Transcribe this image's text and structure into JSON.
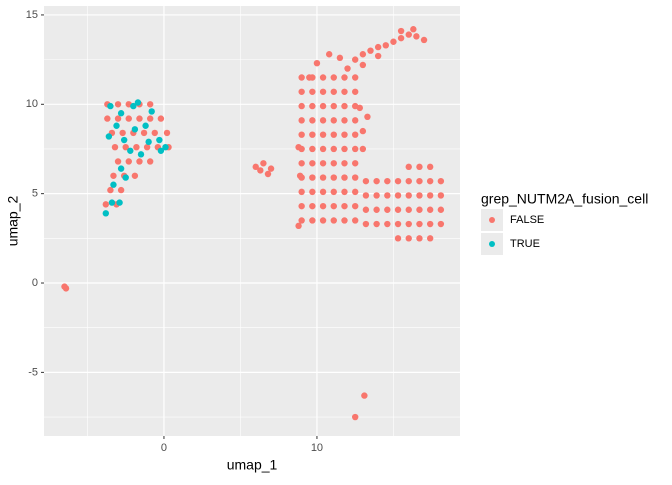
{
  "chart_data": {
    "type": "scatter",
    "x_label": "umap_1",
    "y_label": "umap_2",
    "legend_title": "grep_NUTM2A_fusion_cell",
    "legend_position": "right",
    "grid": true,
    "xlim": [
      -7.84,
      19.35
    ],
    "ylim": [
      -8.56,
      15.5
    ],
    "xticks": [
      0,
      10
    ],
    "yticks": [
      -5,
      0,
      5,
      10,
      15
    ],
    "x_minor_ticks": [
      -5,
      5,
      15
    ],
    "y_minor_ticks": [
      -7.5,
      -2.5,
      2.5,
      7.5,
      12.5
    ],
    "series": [
      {
        "name": "FALSE",
        "color": "#F8766D",
        "x": [
          9,
          9.7,
          10.4,
          11.1,
          11.8,
          12.5,
          9,
          9.7,
          10.4,
          11.1,
          11.8,
          12.5,
          9,
          9.7,
          10.4,
          11.1,
          11.8,
          12.5,
          9,
          9.7,
          10.4,
          11.1,
          11.8,
          12.5,
          9,
          9.7,
          10.4,
          11.1,
          11.8,
          12.5,
          9,
          9.7,
          10.4,
          11.1,
          11.8,
          12.5,
          9,
          9.7,
          10.4,
          11.1,
          11.8,
          12.5,
          9,
          9.7,
          10.4,
          11.1,
          11.8,
          12.5,
          9,
          9.7,
          10.4,
          11.1,
          11.8,
          12.5,
          9,
          9.7,
          10.4,
          11.1,
          11.8,
          12.5,
          9,
          9.7,
          10.4,
          11.1,
          11.8,
          12.5,
          15.3,
          16,
          16.7,
          17.4,
          13.2,
          13.9,
          14.6,
          15.3,
          16,
          16.7,
          17.4,
          18.1,
          13.2,
          13.9,
          14.6,
          15.3,
          16,
          16.7,
          17.4,
          18.1,
          13.2,
          13.9,
          14.6,
          15.3,
          16,
          16.7,
          17.4,
          18.1,
          13.2,
          13.9,
          14.6,
          15.3,
          16,
          16.7,
          17.4,
          18.1,
          16,
          16.7,
          17.4,
          12.5,
          13,
          13.5,
          14,
          14.5,
          15,
          15.5,
          16,
          16.5,
          17,
          15.5,
          16.3,
          12,
          11.5,
          10.8,
          10,
          9.5,
          13,
          14,
          13,
          13,
          13.3,
          12.8,
          8.8,
          8.8,
          8.9,
          6,
          6.5,
          7,
          6.8,
          6.3,
          -6.5,
          -6.4,
          13.1,
          12.5,
          -3.7,
          -3,
          -2.3,
          -1.6,
          -0.9,
          -3.7,
          -3,
          -2.3,
          -1.6,
          -0.9,
          -0.2,
          -3.4,
          -2.7,
          -2,
          -1.3,
          -0.6,
          0.2,
          -3.2,
          -2.5,
          -1.8,
          -1.1,
          -0.4,
          0.3,
          -3,
          -2.3,
          -1.6,
          -0.9,
          -3.3,
          -2.6,
          -1.9,
          -3.5,
          -2.8,
          -3.8,
          -3.1
        ],
        "values": [
          3.5,
          3.5,
          3.5,
          3.5,
          3.5,
          3.5,
          4.3,
          4.3,
          4.3,
          4.3,
          4.3,
          4.3,
          5.1,
          5.1,
          5.1,
          5.1,
          5.1,
          5.1,
          5.9,
          5.9,
          5.9,
          5.9,
          5.9,
          5.9,
          6.7,
          6.7,
          6.7,
          6.7,
          6.7,
          6.7,
          7.5,
          7.5,
          7.5,
          7.5,
          7.5,
          7.5,
          8.3,
          8.3,
          8.3,
          8.3,
          8.3,
          8.3,
          9.1,
          9.1,
          9.1,
          9.1,
          9.1,
          9.1,
          9.9,
          9.9,
          9.9,
          9.9,
          9.9,
          9.9,
          10.7,
          10.7,
          10.7,
          10.7,
          10.7,
          10.7,
          11.5,
          11.5,
          11.5,
          11.5,
          11.5,
          11.5,
          2.5,
          2.5,
          2.5,
          2.5,
          3.3,
          3.3,
          3.3,
          3.3,
          3.3,
          3.3,
          3.3,
          3.3,
          4.1,
          4.1,
          4.1,
          4.1,
          4.1,
          4.1,
          4.1,
          4.1,
          4.9,
          4.9,
          4.9,
          4.9,
          4.9,
          4.9,
          4.9,
          4.9,
          5.7,
          5.7,
          5.7,
          5.7,
          5.7,
          5.7,
          5.7,
          5.7,
          6.5,
          6.5,
          6.5,
          12.5,
          12.8,
          13,
          13.2,
          13.3,
          13.5,
          13.7,
          13.9,
          13.8,
          13.6,
          14.1,
          14.2,
          12,
          12.6,
          12.8,
          12.3,
          11.5,
          12.2,
          12.7,
          7.5,
          8.5,
          9.3,
          9.8,
          7.6,
          3.2,
          6,
          6.5,
          6.7,
          6.4,
          6.1,
          6.3,
          -0.2,
          -0.3,
          -6.3,
          -7.5,
          10,
          10,
          10,
          10,
          10,
          9.2,
          9.2,
          9.2,
          9.2,
          9.2,
          9.2,
          8.4,
          8.4,
          8.4,
          8.4,
          8.4,
          8.4,
          7.6,
          7.6,
          7.6,
          7.6,
          7.6,
          7.6,
          6.8,
          6.8,
          6.8,
          6.8,
          6,
          6,
          6,
          5.2,
          5.2,
          4.4,
          4.4
        ]
      },
      {
        "name": "TRUE",
        "color": "#00BFC4",
        "x": [
          -3.8,
          -3.4,
          -2.9,
          -3.3,
          -2.5,
          -2.8,
          -1.5,
          -2.6,
          -3.5,
          -2.8,
          -2,
          -1.2,
          -0.8,
          -0.3,
          0.1,
          -0.2,
          -3.1,
          -1.9,
          -2.2,
          -3.6,
          -1,
          -1.7
        ],
        "values": [
          3.9,
          4.5,
          4.5,
          5.5,
          5.9,
          6.4,
          7.2,
          8,
          9.9,
          9.5,
          9.9,
          8.8,
          9.6,
          8,
          7.6,
          7.4,
          8.8,
          8.6,
          7.4,
          8.2,
          7.9,
          10.1
        ]
      }
    ]
  }
}
